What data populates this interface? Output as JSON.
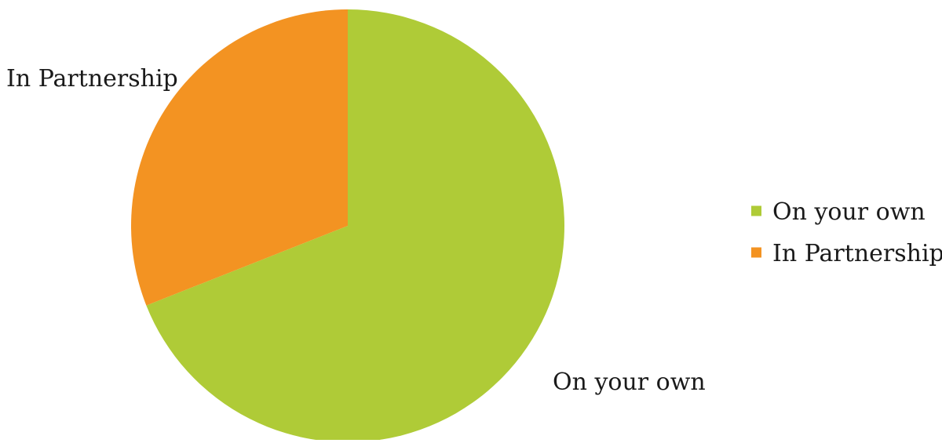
{
  "chart_data": {
    "type": "pie",
    "title": "",
    "categories": [
      "On your own",
      "In Partnership"
    ],
    "values": [
      69,
      31
    ],
    "colors": [
      "#afcb37",
      "#f39322"
    ],
    "start_angle_deg": 0,
    "direction": "clockwise",
    "data_labels": [
      "On your own",
      "In Partnership"
    ],
    "legend": {
      "position": "right",
      "entries": [
        "On your own",
        "In Partnership"
      ]
    }
  }
}
